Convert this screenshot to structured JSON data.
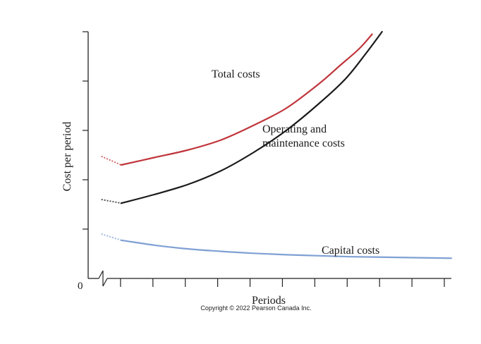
{
  "chart_data": {
    "type": "line",
    "title": "",
    "xlabel": "Periods",
    "ylabel": "Cost per period",
    "origin_label": "0",
    "xlim": [
      0,
      11
    ],
    "ylim": [
      0,
      10
    ],
    "grid": false,
    "x_tick_count": 11,
    "y_tick_count": 5,
    "series": [
      {
        "name": "Total costs",
        "color": "#c0353b",
        "points": [
          [
            0.4,
            4.95
          ],
          [
            1,
            4.6
          ],
          [
            2,
            4.9
          ],
          [
            3,
            5.2
          ],
          [
            4,
            5.6
          ],
          [
            5,
            6.2
          ],
          [
            6,
            6.9
          ],
          [
            7,
            7.9
          ],
          [
            7.6,
            8.6
          ],
          [
            8.2,
            9.3
          ],
          [
            8.6,
            9.9
          ]
        ]
      },
      {
        "name": "Operating and maintenance costs",
        "color": "#1a1a1a",
        "points": [
          [
            0.4,
            3.2
          ],
          [
            1,
            3.05
          ],
          [
            2,
            3.4
          ],
          [
            3,
            3.8
          ],
          [
            4,
            4.35
          ],
          [
            5,
            5.1
          ],
          [
            6,
            6.0
          ],
          [
            7,
            7.1
          ],
          [
            7.8,
            8.1
          ],
          [
            8.4,
            9.1
          ],
          [
            8.9,
            10.0
          ]
        ]
      },
      {
        "name": "Capital costs",
        "color": "#7fa0d4",
        "points": [
          [
            0.4,
            1.8
          ],
          [
            1,
            1.55
          ],
          [
            2,
            1.35
          ],
          [
            3,
            1.2
          ],
          [
            4,
            1.1
          ],
          [
            5,
            1.02
          ],
          [
            6,
            0.96
          ],
          [
            7,
            0.92
          ],
          [
            8,
            0.88
          ],
          [
            9,
            0.86
          ],
          [
            10,
            0.84
          ],
          [
            11,
            0.82
          ]
        ]
      }
    ]
  },
  "copyright": "Copyright © 2022 Pearson Canada Inc."
}
